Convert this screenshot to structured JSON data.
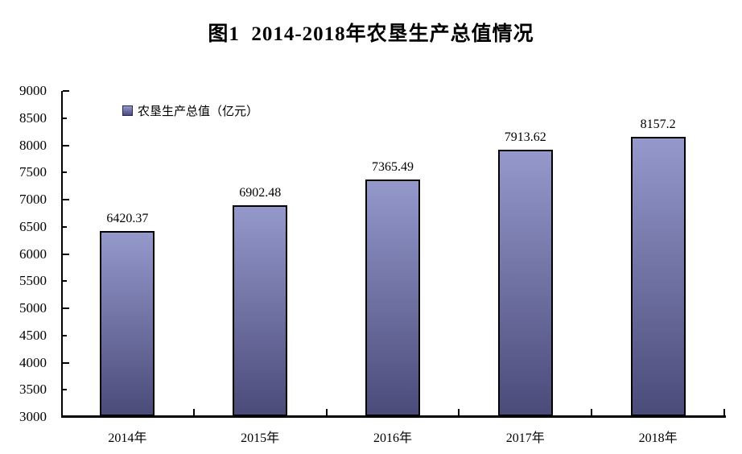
{
  "title": "图1  2014-2018年农垦生产总值情况",
  "legend": {
    "label": "农垦生产总值（亿元）"
  },
  "chart_data": {
    "type": "bar",
    "title": "图1  2014-2018年农垦生产总值情况",
    "categories": [
      "2014年",
      "2015年",
      "2016年",
      "2017年",
      "2018年"
    ],
    "values": [
      6420.37,
      6902.48,
      7365.49,
      7913.62,
      8157.2
    ],
    "value_labels": [
      "6420.37",
      "6902.48",
      "7365.49",
      "7913.62",
      "8157.2"
    ],
    "series_name": "农垦生产总值（亿元）",
    "xlabel": "",
    "ylabel": "",
    "ylim": [
      3000,
      9000
    ],
    "ytick_step": 500,
    "ytick_labels": [
      "3000",
      "3500",
      "4000",
      "4500",
      "5000",
      "5500",
      "6000",
      "6500",
      "7000",
      "7500",
      "8000",
      "8500",
      "9000"
    ],
    "grid": false,
    "legend_position": "top-left-inside",
    "colors": {
      "bar_gradient_top": "#9498CB",
      "bar_gradient_bottom": "#4B4B7A",
      "bar_border": "#000000",
      "axis": "#000000",
      "text": "#000000",
      "background": "#ffffff"
    }
  }
}
